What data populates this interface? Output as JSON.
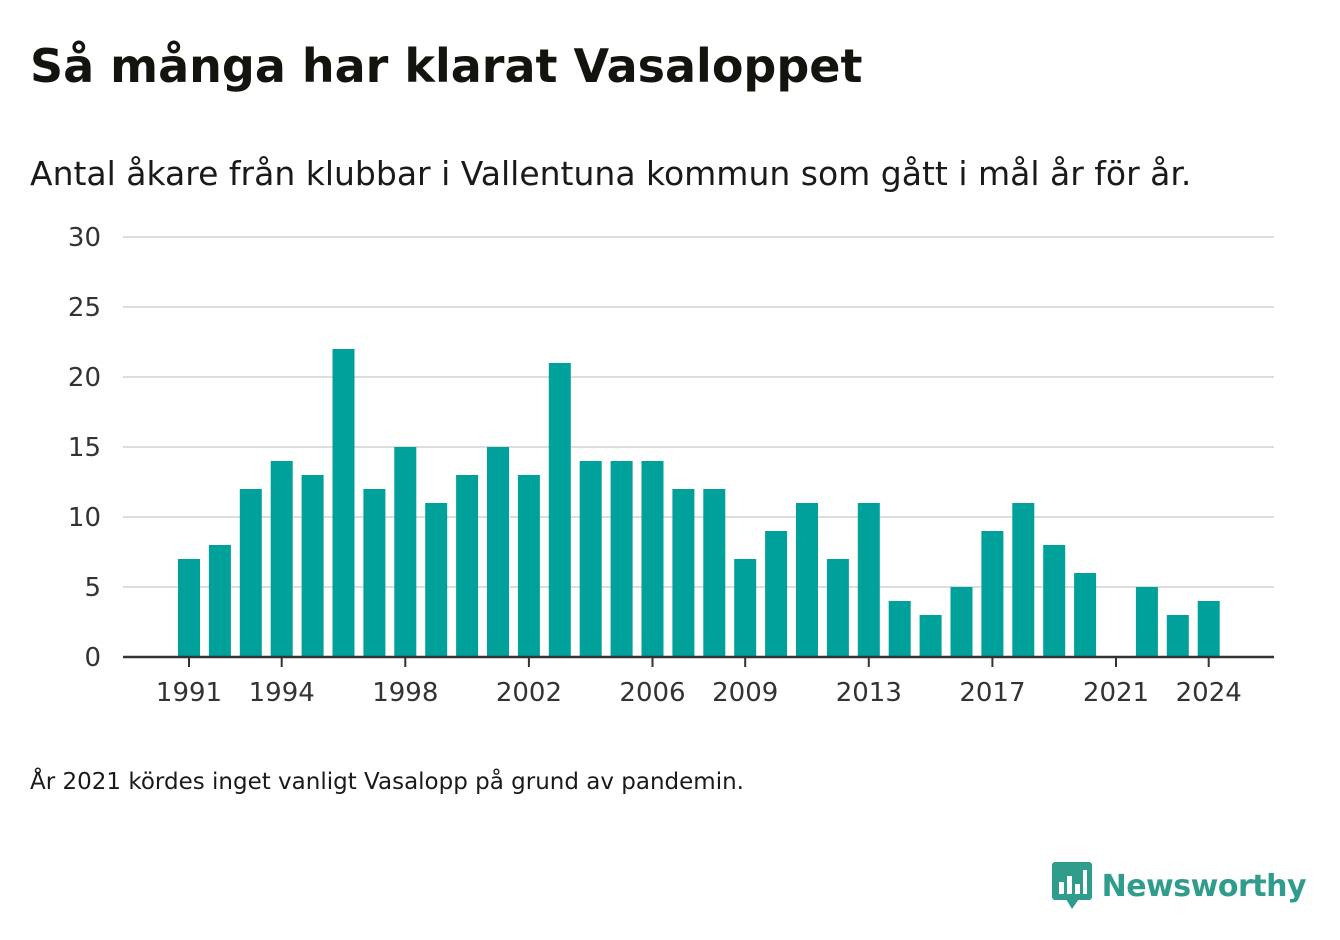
{
  "title": "Så många har klarat Vasaloppet",
  "subtitle": "Antal åkare från klubbar i Vallentuna kommun som gått i mål år för år.",
  "footnote": "År 2021 kördes inget vanligt Vasalopp på grund av pandemin.",
  "brand": {
    "name": "Newsworthy",
    "color": "#2f9c8c",
    "icon": "bar-chart-speech-bubble-icon"
  },
  "colors": {
    "bar": "#00a19a",
    "grid": "#dddddd",
    "axis": "#333333"
  },
  "chart_data": {
    "type": "bar",
    "title": "Så många har klarat Vasaloppet",
    "xlabel": "",
    "ylabel": "",
    "ylim": [
      0,
      30
    ],
    "yticks": [
      0,
      5,
      10,
      15,
      20,
      25,
      30
    ],
    "xtick_labels": [
      1991,
      1994,
      1998,
      2002,
      2006,
      2009,
      2013,
      2017,
      2021,
      2024
    ],
    "grid": true,
    "legend": "none",
    "categories": [
      1991,
      1992,
      1993,
      1994,
      1995,
      1996,
      1997,
      1998,
      1999,
      2000,
      2001,
      2002,
      2003,
      2004,
      2005,
      2006,
      2007,
      2008,
      2009,
      2010,
      2011,
      2012,
      2013,
      2014,
      2015,
      2016,
      2017,
      2018,
      2019,
      2020,
      2021,
      2022,
      2023,
      2024
    ],
    "values": [
      7,
      8,
      12,
      14,
      13,
      22,
      12,
      15,
      11,
      13,
      15,
      13,
      21,
      14,
      14,
      14,
      12,
      12,
      7,
      9,
      11,
      7,
      11,
      4,
      3,
      5,
      9,
      11,
      8,
      6,
      null,
      5,
      3,
      4
    ]
  }
}
